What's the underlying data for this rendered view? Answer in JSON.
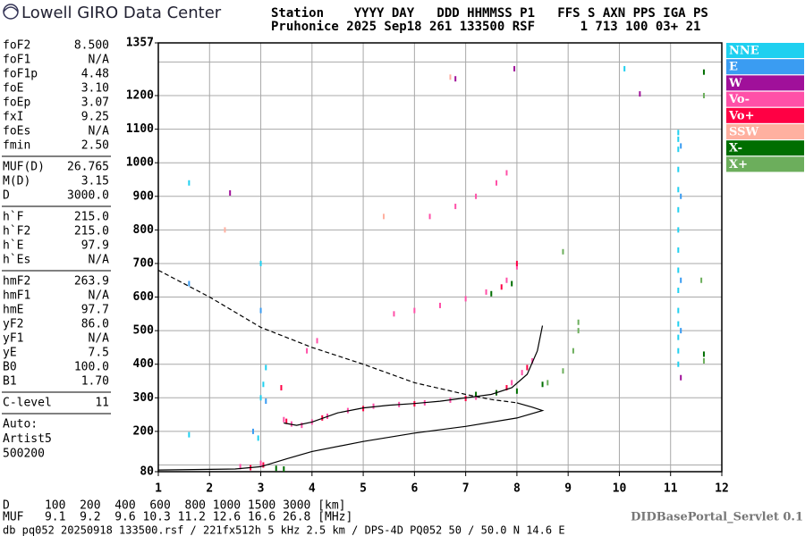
{
  "header": {
    "logo_text": "Lowell GIRO Data Center",
    "line1": "Station    YYYY DAY   DDD HHMMSS P1   FFS S AXN PPS IGA PS",
    "line2": "Pruhonice 2025 Sep18 261 133500 RSF      1 713 100 03+ 21"
  },
  "parameters": [
    [
      {
        "name": "foF2",
        "value": "8.500"
      },
      {
        "name": "foF1",
        "value": "N/A"
      },
      {
        "name": "foF1p",
        "value": "4.48"
      },
      {
        "name": "foE",
        "value": "3.10"
      },
      {
        "name": "foEp",
        "value": "3.07"
      },
      {
        "name": "fxI",
        "value": "9.25"
      },
      {
        "name": "foEs",
        "value": "N/A"
      },
      {
        "name": "fmin",
        "value": "2.50"
      }
    ],
    [
      {
        "name": "MUF(D)",
        "value": "26.765"
      },
      {
        "name": "M(D)",
        "value": "3.15"
      },
      {
        "name": "D",
        "value": "3000.0"
      }
    ],
    [
      {
        "name": "h`F",
        "value": "215.0"
      },
      {
        "name": "h`F2",
        "value": "215.0"
      },
      {
        "name": "h`E",
        "value": "97.9"
      },
      {
        "name": "h`Es",
        "value": "N/A"
      }
    ],
    [
      {
        "name": "hmF2",
        "value": "263.9"
      },
      {
        "name": "hmF1",
        "value": "N/A"
      },
      {
        "name": "hmE",
        "value": "97.7"
      },
      {
        "name": "yF2",
        "value": "86.0"
      },
      {
        "name": "yF1",
        "value": "N/A"
      },
      {
        "name": "yE",
        "value": "7.5"
      },
      {
        "name": "B0",
        "value": "100.0"
      },
      {
        "name": "B1",
        "value": "1.70"
      }
    ],
    [
      {
        "name": "C-level",
        "value": "11"
      }
    ]
  ],
  "auto": [
    "Auto:",
    "Artist5",
    "500200"
  ],
  "chart_data": {
    "type": "scatter",
    "xlim": [
      1,
      12
    ],
    "xticks": [
      1,
      2,
      3,
      4,
      5,
      6,
      7,
      8,
      9,
      10,
      11,
      12
    ],
    "ylim": [
      80,
      1357
    ],
    "yticks": [
      80,
      200,
      300,
      400,
      500,
      600,
      700,
      800,
      900,
      1000,
      1100,
      1200,
      1357
    ],
    "ygrid": [
      100,
      200,
      300,
      400,
      500,
      600,
      700,
      800,
      900,
      1000,
      1100,
      1200,
      1300
    ],
    "grid": true,
    "legend": "right",
    "series": [
      {
        "name": "NNE",
        "color": "#1fd0f0",
        "x": [
          11.15,
          11.15,
          11.15,
          11.15,
          11.15,
          11.15,
          11.15,
          11.15,
          11.15,
          11.15,
          11.15,
          11.15,
          11.15,
          11.15,
          11.15,
          3.0,
          3.05,
          3.1,
          1.6,
          1.6,
          3.0,
          2.95,
          10.1
        ],
        "values": [
          400,
          440,
          480,
          520,
          560,
          620,
          680,
          740,
          800,
          860,
          920,
          980,
          1040,
          1090,
          1070,
          300,
          340,
          390,
          190,
          940,
          700,
          180,
          1280
        ]
      },
      {
        "name": "E",
        "color": "#3a9cf2",
        "x": [
          11.2,
          11.2,
          11.2,
          11.2,
          3.0,
          3.1,
          2.85,
          1.6
        ],
        "values": [
          500,
          650,
          900,
          1050,
          560,
          290,
          200,
          640
        ]
      },
      {
        "name": "W",
        "color": "#a0109a",
        "x": [
          6.8,
          7.95,
          10.4,
          2.4,
          11.2
        ],
        "values": [
          1250,
          1280,
          1205,
          910,
          360
        ]
      },
      {
        "name": "Vo-",
        "color": "#ff50a8",
        "x": [
          3.45,
          3.6,
          3.8,
          4.0,
          4.3,
          4.7,
          5.2,
          5.7,
          6.2,
          6.7,
          7.2,
          7.6,
          7.9,
          8.1,
          8.3,
          5.6,
          6.0,
          6.5,
          7.0,
          7.4,
          7.8,
          8.0,
          6.3,
          6.8,
          7.2,
          7.6,
          7.8,
          4.1,
          3.9,
          2.6,
          3.0
        ],
        "values": [
          235,
          222,
          218,
          228,
          245,
          262,
          275,
          280,
          285,
          293,
          302,
          315,
          345,
          375,
          410,
          550,
          560,
          575,
          595,
          615,
          650,
          690,
          840,
          870,
          900,
          940,
          970,
          470,
          440,
          95,
          105
        ]
      },
      {
        "name": "Vo+",
        "color": "#ff0044",
        "x": [
          3.5,
          4.2,
          5.0,
          6.0,
          7.0,
          7.8,
          8.2,
          8.0,
          7.7,
          3.4,
          2.8,
          3.05
        ],
        "values": [
          230,
          240,
          268,
          282,
          298,
          330,
          390,
          700,
          630,
          330,
          92,
          100
        ]
      },
      {
        "name": "SSW",
        "color": "#ffb0a0",
        "x": [
          2.3,
          6.7,
          5.4
        ],
        "values": [
          800,
          1255,
          840
        ]
      },
      {
        "name": "X-",
        "color": "#006e00",
        "x": [
          7.5,
          7.9,
          7.2,
          7.6,
          8.0,
          8.5,
          3.3,
          3.45,
          11.65,
          11.65
        ],
        "values": [
          610,
          640,
          310,
          315,
          320,
          340,
          90,
          88,
          430,
          1270
        ]
      },
      {
        "name": "X+",
        "color": "#6cae5c",
        "x": [
          8.6,
          8.9,
          9.1,
          9.2,
          9.2,
          11.65,
          11.65,
          8.9,
          11.6
        ],
        "values": [
          345,
          380,
          440,
          500,
          525,
          410,
          1200,
          735,
          650
        ]
      }
    ],
    "curves": [
      {
        "style": "solid",
        "x": [
          3.45,
          3.7,
          4.0,
          4.5,
          5.0,
          5.5,
          6.0,
          6.5,
          7.0,
          7.5,
          7.9,
          8.2,
          8.4,
          8.5
        ],
        "values": [
          225,
          218,
          228,
          255,
          270,
          278,
          283,
          290,
          300,
          310,
          330,
          370,
          440,
          515
        ]
      },
      {
        "style": "solid",
        "x": [
          1.0,
          2.5,
          3.0,
          3.5,
          4.0,
          5.0,
          6.0,
          7.0,
          8.0,
          8.5,
          8.3,
          8.0
        ],
        "values": [
          85,
          88,
          95,
          118,
          140,
          170,
          195,
          215,
          240,
          262,
          272,
          285
        ]
      },
      {
        "style": "dashed",
        "x": [
          1.0,
          2.0,
          3.0,
          4.0,
          5.0,
          6.0,
          7.0,
          7.5,
          8.0
        ],
        "values": [
          680,
          600,
          510,
          450,
          400,
          345,
          310,
          295,
          285
        ]
      }
    ]
  },
  "footer": {
    "distance_line": "D     100  200  400  600  800 1000 1500 3000 [km]",
    "muf_line": "MUF   9.1  9.2  9.6 10.3 11.2 12.6 16.6 26.8 [MHz]",
    "servlet": "DIDBasePortal_Servlet 0.1",
    "file_line": "db pq052 20250918 133500.rsf / 221fx512h 5 kHz 2.5 km / DPS-4D PQ052 50 / 50.0 N 14.6 E"
  }
}
